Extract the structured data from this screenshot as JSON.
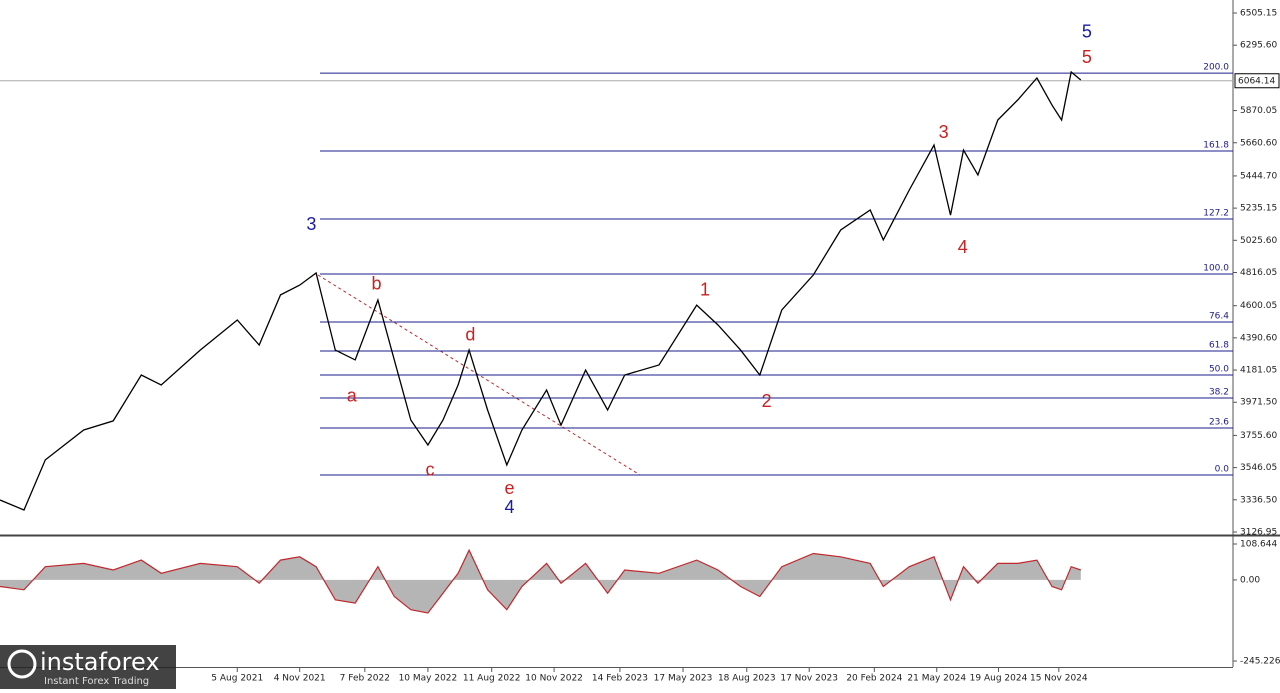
{
  "chart_data": [
    {
      "type": "line",
      "color": "#000000",
      "x": [
        "2020-08-24",
        "2020-09-28",
        "2020-10-29",
        "2020-12-24",
        "2021-02-05",
        "2021-03-18",
        "2021-04-16",
        "2021-06-12",
        "2021-08-05",
        "2021-09-06",
        "2021-10-07",
        "2021-11-04",
        "2021-11-28",
        "2021-12-26",
        "2022-01-24",
        "2022-02-26",
        "2022-03-22",
        "2022-04-15",
        "2022-05-10",
        "2022-06-01",
        "2022-06-23",
        "2022-07-09",
        "2022-08-05",
        "2022-09-02",
        "2022-09-24",
        "2022-10-30",
        "2022-11-20",
        "2022-12-26",
        "2023-01-27",
        "2023-02-21",
        "2023-04-12",
        "2023-06-06",
        "2023-07-07",
        "2023-08-09",
        "2023-09-06",
        "2023-10-08",
        "2023-11-23",
        "2024-01-02",
        "2024-02-14",
        "2024-03-04",
        "2024-04-11",
        "2024-05-17",
        "2024-06-10",
        "2024-06-29",
        "2024-07-20",
        "2024-08-18",
        "2024-09-16",
        "2024-10-14",
        "2024-11-05",
        "2024-11-19",
        "2024-12-03",
        "2024-12-17"
      ],
      "values": [
        3335,
        3270,
        3596,
        3791,
        3850,
        4149,
        4084,
        4311,
        4507,
        4344,
        4670,
        4734,
        4813,
        4311,
        4247,
        4637,
        4247,
        3856,
        3693,
        3856,
        4084,
        4311,
        3921,
        3563,
        3791,
        4051,
        3823,
        4181,
        3921,
        4149,
        4214,
        4604,
        4474,
        4311,
        4149,
        4572,
        4800,
        5093,
        5223,
        5028,
        5353,
        5646,
        5190,
        5613,
        5451,
        5809,
        5939,
        6082,
        5906,
        5809,
        6121,
        6069
      ],
      "xlim": [
        "2020-08-24",
        "2025-07-27"
      ],
      "xticks": [
        {
          "value": "2021-08-05",
          "label": "5 Aug 2021"
        },
        {
          "value": "2021-11-04",
          "label": "4 Nov 2021"
        },
        {
          "value": "2022-02-07",
          "label": "7 Feb 2022"
        },
        {
          "value": "2022-05-10",
          "label": "10 May 2022"
        },
        {
          "value": "2022-08-11",
          "label": "11 Aug 2022"
        },
        {
          "value": "2022-11-10",
          "label": "10 Nov 2022"
        },
        {
          "value": "2023-02-14",
          "label": "14 Feb 2023"
        },
        {
          "value": "2023-05-17",
          "label": "17 May 2023"
        },
        {
          "value": "2023-08-18",
          "label": "18 Aug 2023"
        },
        {
          "value": "2023-11-17",
          "label": "17 Nov 2023"
        },
        {
          "value": "2024-02-20",
          "label": "20 Feb 2024"
        },
        {
          "value": "2024-05-21",
          "label": "21 May 2024"
        },
        {
          "value": "2024-08-19",
          "label": "19 Aug 2024"
        },
        {
          "value": "2024-11-15",
          "label": "15 Nov 2024"
        }
      ],
      "ylim": [
        3107.4,
        6589.8
      ],
      "yticks": [
        6505.15,
        {
          "value": 6295.6,
          "label": "6295.60"
        },
        5870.05,
        {
          "value": 5660.6,
          "label": "5660.60"
        },
        {
          "value": 5444.7,
          "label": "5444.70"
        },
        5235.15,
        {
          "value": 5025.6,
          "label": "5025.60"
        },
        4816.05,
        4600.05,
        {
          "value": 4390.6,
          "label": "4390.60"
        },
        4181.05,
        {
          "value": 3971.5,
          "label": "3971.50"
        },
        {
          "value": 3755.6,
          "label": "3755.60"
        },
        3546.05,
        {
          "value": 3336.5,
          "label": "3336.50"
        },
        3126.95
      ],
      "last_price": 6064.14,
      "fib_color": "#1c1c8c",
      "fib_levels": [
        {
          "label": "200.0",
          "price": 6114
        },
        {
          "label": "161.8",
          "price": 5607
        },
        {
          "label": "127.2",
          "price": 5164
        },
        {
          "label": "100.0",
          "price": 4806
        },
        {
          "label": "76.4",
          "price": 4494
        },
        {
          "label": "61.8",
          "price": 4305
        },
        {
          "label": "50.0",
          "price": 4149
        },
        {
          "label": "38.2",
          "price": 3999
        },
        {
          "label": "23.6",
          "price": 3804
        },
        {
          "label": "0.0",
          "price": 3498
        }
      ],
      "annotations": [
        {
          "text": "3",
          "color": "#1a1aa8",
          "x": "2021-11-21",
          "y": 5125
        },
        {
          "text": "5",
          "color": "#1a1aa8",
          "x": "2024-12-26",
          "y": 6375
        },
        {
          "text": "5",
          "color": "#cc1f1f",
          "x": "2024-12-26",
          "y": 6212
        },
        {
          "text": "3",
          "color": "#cc1f1f",
          "x": "2024-05-31",
          "y": 5724
        },
        {
          "text": "4",
          "color": "#cc1f1f",
          "x": "2024-06-28",
          "y": 4975
        },
        {
          "text": "1",
          "color": "#cc1f1f",
          "x": "2023-06-18",
          "y": 4696
        },
        {
          "text": "2",
          "color": "#cc1f1f",
          "x": "2023-09-16",
          "y": 3973
        },
        {
          "text": "4",
          "color": "#1a1aa8",
          "x": "2022-09-06",
          "y": 3283
        },
        {
          "text": "e",
          "color": "#cc1f1f",
          "x": "2022-09-06",
          "y": 3406
        },
        {
          "text": "c",
          "color": "#cc1f1f",
          "x": "2022-05-13",
          "y": 3524
        },
        {
          "text": "d",
          "color": "#cc1f1f",
          "x": "2022-07-11",
          "y": 4403
        },
        {
          "text": "b",
          "color": "#cc1f1f",
          "x": "2022-02-24",
          "y": 4735
        },
        {
          "text": "a",
          "color": "#cc1f1f",
          "x": "2022-01-19",
          "y": 4006
        }
      ]
    },
    {
      "type": "area",
      "color": "#b5b5b5",
      "line_color": "#c0282d",
      "ylim": [
        -263.3,
        129.8
      ],
      "yticks": [
        108.644,
        {
          "value": 0,
          "label": "0.00"
        },
        -245.226
      ],
      "values": [
        -20,
        -30,
        40,
        50,
        30,
        60,
        20,
        50,
        40,
        -10,
        60,
        70,
        40,
        -60,
        -70,
        40,
        -50,
        -90,
        -100,
        -40,
        20,
        90,
        -30,
        -90,
        -20,
        50,
        -10,
        50,
        -40,
        30,
        20,
        60,
        30,
        -20,
        -50,
        40,
        80,
        70,
        50,
        -20,
        40,
        70,
        -60,
        40,
        -10,
        50,
        50,
        60,
        -20,
        -30,
        40,
        30
      ]
    }
  ],
  "branding": {
    "brand": "instaforex",
    "tagline": "Instant Forex Trading"
  }
}
